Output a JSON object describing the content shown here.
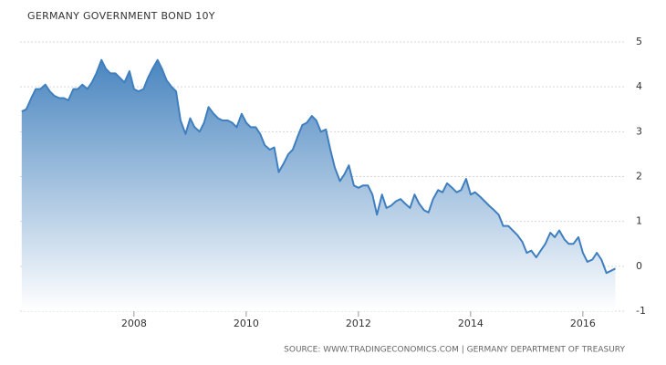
{
  "chart_data": {
    "type": "area",
    "title": "GERMANY GOVERNMENT BOND 10Y",
    "source": "SOURCE: WWW.TRADINGECONOMICS.COM | GERMANY DEPARTMENT OF TREASURY",
    "color": "#3f7fbf",
    "grid": true,
    "y_axis_side": "right",
    "xlim": [
      2005.97,
      2016.75
    ],
    "xticks": [
      2008,
      2010,
      2012,
      2014,
      2016
    ],
    "ylim": [
      -1,
      5
    ],
    "yticks": [
      5,
      4,
      3,
      2,
      1,
      0,
      -1
    ],
    "x": [
      2006.0,
      2006.08,
      2006.17,
      2006.25,
      2006.33,
      2006.42,
      2006.5,
      2006.58,
      2006.67,
      2006.75,
      2006.83,
      2006.92,
      2007.0,
      2007.08,
      2007.17,
      2007.25,
      2007.33,
      2007.42,
      2007.5,
      2007.58,
      2007.67,
      2007.75,
      2007.83,
      2007.92,
      2008.0,
      2008.08,
      2008.17,
      2008.25,
      2008.33,
      2008.42,
      2008.5,
      2008.58,
      2008.67,
      2008.75,
      2008.83,
      2008.92,
      2009.0,
      2009.08,
      2009.17,
      2009.25,
      2009.33,
      2009.42,
      2009.5,
      2009.58,
      2009.67,
      2009.75,
      2009.83,
      2009.92,
      2010.0,
      2010.08,
      2010.17,
      2010.25,
      2010.33,
      2010.42,
      2010.5,
      2010.58,
      2010.67,
      2010.75,
      2010.83,
      2010.92,
      2011.0,
      2011.08,
      2011.17,
      2011.25,
      2011.33,
      2011.42,
      2011.5,
      2011.58,
      2011.67,
      2011.75,
      2011.83,
      2011.92,
      2012.0,
      2012.08,
      2012.17,
      2012.25,
      2012.33,
      2012.42,
      2012.5,
      2012.58,
      2012.67,
      2012.75,
      2012.83,
      2012.92,
      2013.0,
      2013.08,
      2013.17,
      2013.25,
      2013.33,
      2013.42,
      2013.5,
      2013.58,
      2013.67,
      2013.75,
      2013.83,
      2013.92,
      2014.0,
      2014.08,
      2014.17,
      2014.25,
      2014.33,
      2014.42,
      2014.5,
      2014.58,
      2014.67,
      2014.75,
      2014.83,
      2014.92,
      2015.0,
      2015.08,
      2015.17,
      2015.25,
      2015.33,
      2015.42,
      2015.5,
      2015.58,
      2015.67,
      2015.75,
      2015.83,
      2015.92,
      2016.0,
      2016.08,
      2016.17,
      2016.25,
      2016.33,
      2016.42,
      2016.5,
      2016.58
    ],
    "values": [
      3.45,
      3.5,
      3.75,
      3.95,
      3.95,
      4.05,
      3.9,
      3.8,
      3.75,
      3.75,
      3.7,
      3.95,
      3.95,
      4.05,
      3.95,
      4.1,
      4.3,
      4.6,
      4.4,
      4.3,
      4.3,
      4.2,
      4.1,
      4.35,
      3.95,
      3.9,
      3.95,
      4.2,
      4.4,
      4.6,
      4.4,
      4.15,
      4.0,
      3.9,
      3.25,
      2.95,
      3.3,
      3.1,
      3.0,
      3.2,
      3.55,
      3.4,
      3.3,
      3.25,
      3.25,
      3.2,
      3.1,
      3.4,
      3.2,
      3.1,
      3.1,
      2.95,
      2.7,
      2.6,
      2.65,
      2.1,
      2.3,
      2.5,
      2.6,
      2.9,
      3.15,
      3.2,
      3.35,
      3.25,
      3.0,
      3.05,
      2.6,
      2.2,
      1.9,
      2.05,
      2.25,
      1.8,
      1.75,
      1.8,
      1.8,
      1.6,
      1.15,
      1.6,
      1.3,
      1.35,
      1.45,
      1.5,
      1.4,
      1.3,
      1.6,
      1.4,
      1.25,
      1.2,
      1.5,
      1.7,
      1.65,
      1.85,
      1.75,
      1.65,
      1.7,
      1.95,
      1.6,
      1.65,
      1.55,
      1.45,
      1.35,
      1.25,
      1.15,
      0.9,
      0.9,
      0.8,
      0.7,
      0.55,
      0.3,
      0.35,
      0.2,
      0.35,
      0.5,
      0.75,
      0.65,
      0.8,
      0.6,
      0.5,
      0.5,
      0.65,
      0.3,
      0.1,
      0.15,
      0.3,
      0.15,
      -0.15,
      -0.1,
      -0.05
    ]
  }
}
